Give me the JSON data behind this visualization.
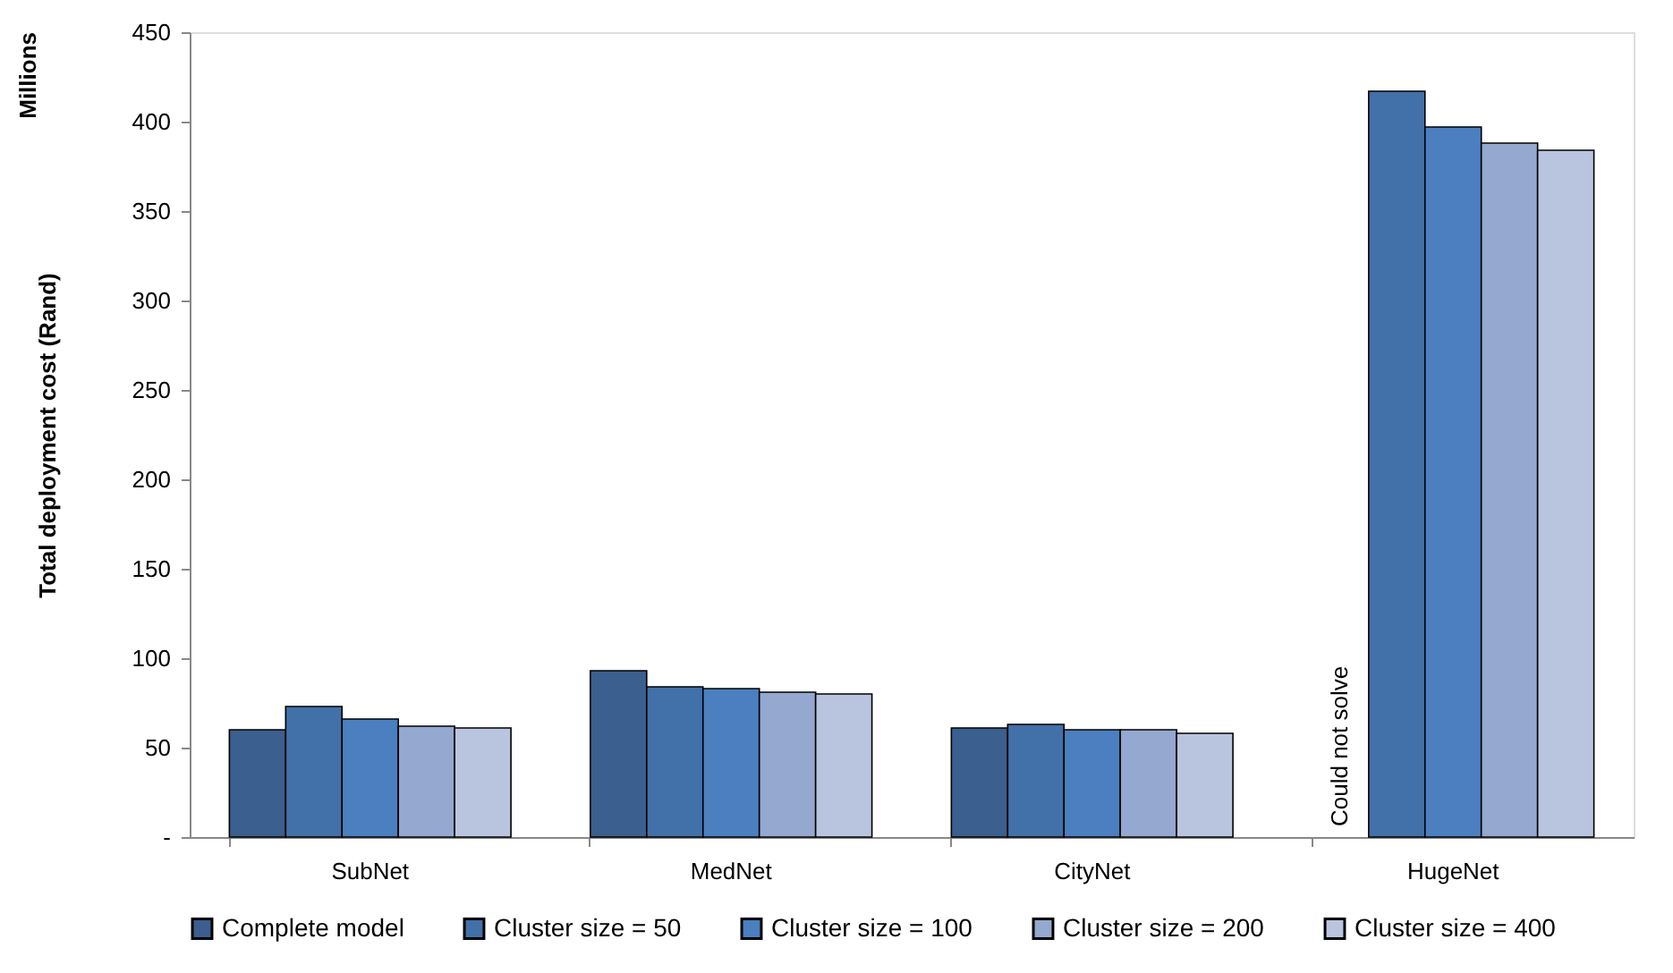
{
  "chart_data": {
    "type": "bar",
    "ylabel": "Total deployment cost (Rand)",
    "categories": [
      "SubNet",
      "MedNet",
      "CityNet",
      "HugeNet"
    ],
    "series": [
      {
        "name": "Complete model",
        "color": "#3b5f8e",
        "values": [
          60,
          93,
          61,
          null
        ]
      },
      {
        "name": "Cluster size = 50",
        "color": "#4270a8",
        "values": [
          73,
          84,
          63,
          417
        ]
      },
      {
        "name": "Cluster size = 100",
        "color": "#4b7fbf",
        "values": [
          66,
          83,
          60,
          397
        ]
      },
      {
        "name": "Cluster size = 200",
        "color": "#94a8d0",
        "values": [
          62,
          81,
          60,
          388
        ]
      },
      {
        "name": "Cluster size = 400",
        "color": "#b9c5df",
        "values": [
          61,
          80,
          58,
          384
        ]
      }
    ],
    "ylim": [
      0,
      450
    ],
    "yticks": [
      {
        "value": 0,
        "label": "-"
      },
      50,
      100,
      150,
      200,
      250,
      300,
      350,
      400,
      450
    ],
    "annotations": [
      "Millions",
      "Could not solve"
    ],
    "grid": false,
    "legend": "bottom"
  }
}
